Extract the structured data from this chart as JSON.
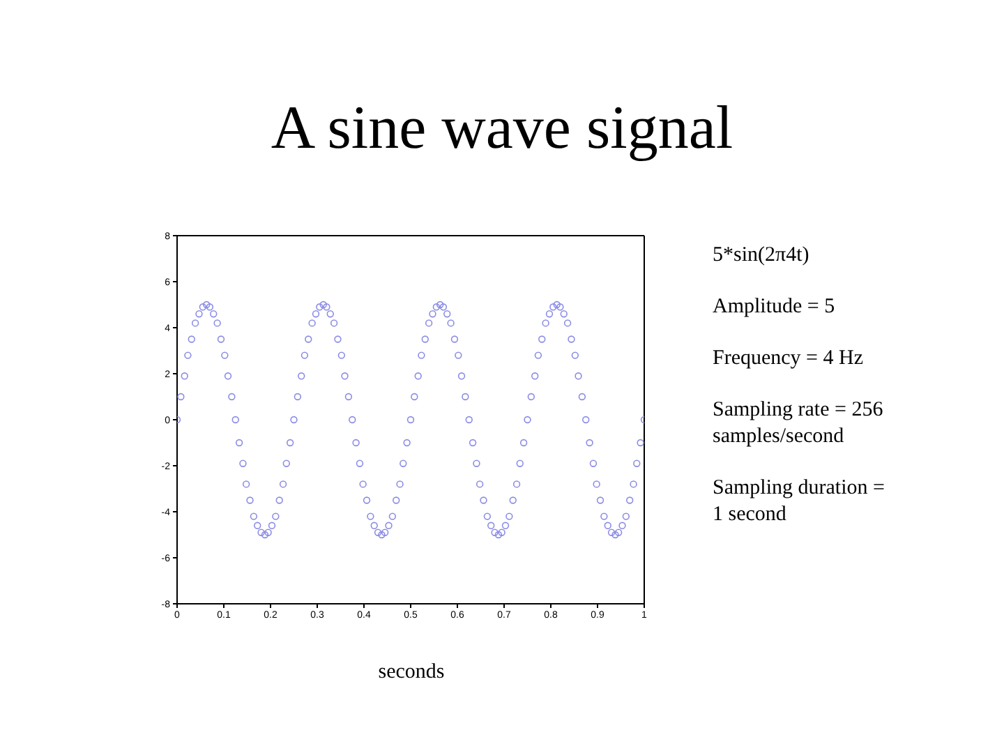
{
  "chart_data": {
    "type": "scatter",
    "title": "A sine wave signal",
    "xlabel": "seconds",
    "annotations": [
      "5*sin(2π4t)",
      "Amplitude = 5",
      "Frequency = 4 Hz",
      "Sampling rate = 256 samples/second",
      "Sampling duration = 1 second"
    ],
    "x": [
      0,
      0.008,
      0.016,
      0.023,
      0.031,
      0.039,
      0.047,
      0.055,
      0.063,
      0.07,
      0.078,
      0.086,
      0.094,
      0.102,
      0.109,
      0.117,
      0.125,
      0.133,
      0.141,
      0.148,
      0.156,
      0.164,
      0.172,
      0.18,
      0.188,
      0.195,
      0.203,
      0.211,
      0.219,
      0.227,
      0.234,
      0.242,
      0.25,
      0.258,
      0.266,
      0.273,
      0.281,
      0.289,
      0.297,
      0.305,
      0.313,
      0.32,
      0.328,
      0.336,
      0.344,
      0.352,
      0.359,
      0.367,
      0.375,
      0.383,
      0.391,
      0.398,
      0.406,
      0.414,
      0.422,
      0.43,
      0.438,
      0.445,
      0.453,
      0.461,
      0.469,
      0.477,
      0.484,
      0.492,
      0.5,
      0.508,
      0.516,
      0.523,
      0.531,
      0.539,
      0.547,
      0.555,
      0.563,
      0.57,
      0.578,
      0.586,
      0.594,
      0.602,
      0.609,
      0.617,
      0.625,
      0.633,
      0.641,
      0.648,
      0.656,
      0.664,
      0.672,
      0.68,
      0.688,
      0.695,
      0.703,
      0.711,
      0.719,
      0.727,
      0.734,
      0.742,
      0.75,
      0.758,
      0.766,
      0.773,
      0.781,
      0.789,
      0.797,
      0.805,
      0.813,
      0.82,
      0.828,
      0.836,
      0.844,
      0.852,
      0.859,
      0.867,
      0.875,
      0.883,
      0.891,
      0.898,
      0.906,
      0.914,
      0.922,
      0.93,
      0.938,
      0.945,
      0.953,
      0.961,
      0.969,
      0.977,
      0.984,
      0.992,
      1
    ],
    "series": [
      {
        "color": "#8c8ce6",
        "values": [
          0,
          1,
          1.9,
          2.8,
          3.5,
          4.2,
          4.6,
          4.9,
          5,
          4.9,
          4.6,
          4.2,
          3.5,
          2.8,
          1.9,
          1,
          0,
          -1,
          -1.9,
          -2.8,
          -3.5,
          -4.2,
          -4.6,
          -4.9,
          -5,
          -4.9,
          -4.6,
          -4.2,
          -3.5,
          -2.8,
          -1.9,
          -1,
          0,
          1,
          1.9,
          2.8,
          3.5,
          4.2,
          4.6,
          4.9,
          5,
          4.9,
          4.6,
          4.2,
          3.5,
          2.8,
          1.9,
          1,
          0,
          -1,
          -1.9,
          -2.8,
          -3.5,
          -4.2,
          -4.6,
          -4.9,
          -5,
          -4.9,
          -4.6,
          -4.2,
          -3.5,
          -2.8,
          -1.9,
          -1,
          0,
          1,
          1.9,
          2.8,
          3.5,
          4.2,
          4.6,
          4.9,
          5,
          4.9,
          4.6,
          4.2,
          3.5,
          2.8,
          1.9,
          1,
          0,
          -1,
          -1.9,
          -2.8,
          -3.5,
          -4.2,
          -4.6,
          -4.9,
          -5,
          -4.9,
          -4.6,
          -4.2,
          -3.5,
          -2.8,
          -1.9,
          -1,
          0,
          1,
          1.9,
          2.8,
          3.5,
          4.2,
          4.6,
          4.9,
          5,
          4.9,
          4.6,
          4.2,
          3.5,
          2.8,
          1.9,
          1,
          0,
          -1,
          -1.9,
          -2.8,
          -3.5,
          -4.2,
          -4.6,
          -4.9,
          -5,
          -4.9,
          -4.6,
          -4.2,
          -3.5,
          -2.8,
          -1.9,
          -1,
          0
        ]
      }
    ],
    "xlim": [
      0,
      1
    ],
    "xticks": [
      0,
      0.1,
      0.2,
      0.3,
      0.4,
      0.5,
      0.6,
      0.7,
      0.8,
      0.9,
      1
    ],
    "ylim": [
      -8,
      8
    ],
    "yticks": [
      -8,
      -6,
      -4,
      -2,
      0,
      2,
      4,
      6,
      8
    ],
    "marker": "circle"
  }
}
